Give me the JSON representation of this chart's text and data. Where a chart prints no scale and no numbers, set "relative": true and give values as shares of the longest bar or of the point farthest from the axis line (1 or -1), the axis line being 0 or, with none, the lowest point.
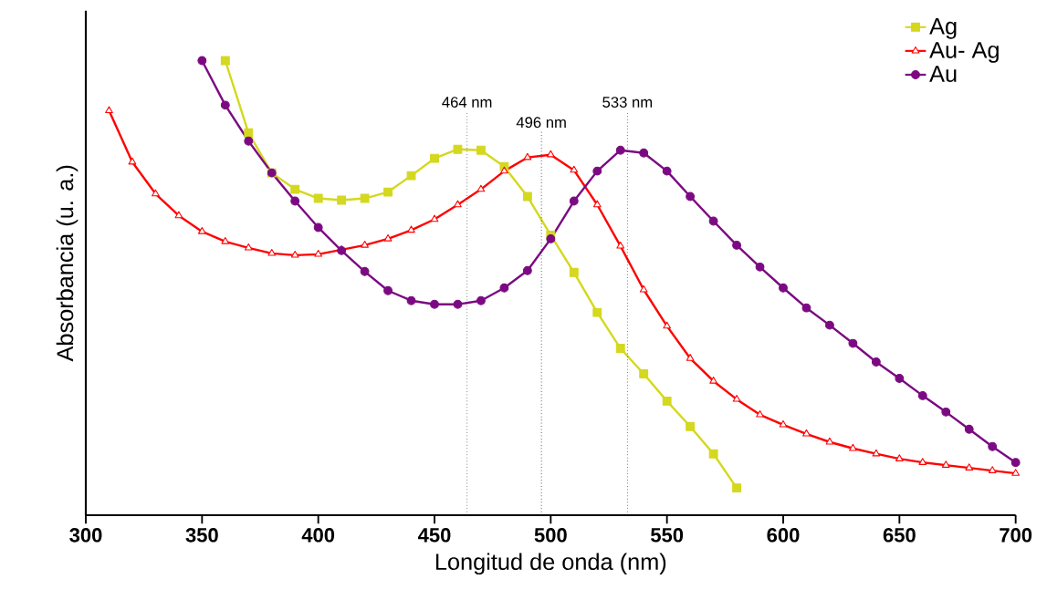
{
  "chart_data": {
    "type": "line",
    "relative": true,
    "xlabel": "Longitud de onda (nm)",
    "ylabel": "Absorbancia (u. a.)",
    "xlim": [
      300,
      700
    ],
    "xticks": [
      300,
      350,
      400,
      450,
      500,
      550,
      600,
      650,
      700
    ],
    "legend": "top right",
    "line_style": "solid",
    "series": [
      {
        "name": "Ag",
        "color": "#d4d81e",
        "marker": "square",
        "x": [
          360,
          370,
          380,
          390,
          400,
          410,
          420,
          430,
          440,
          450,
          460,
          470,
          480,
          490,
          500,
          510,
          520,
          530,
          540,
          550,
          560,
          570,
          580
        ],
        "values": [
          1.0,
          0.841,
          0.753,
          0.717,
          0.697,
          0.693,
          0.697,
          0.711,
          0.747,
          0.785,
          0.805,
          0.803,
          0.767,
          0.701,
          0.616,
          0.534,
          0.446,
          0.367,
          0.311,
          0.251,
          0.195,
          0.135,
          0.06
        ]
      },
      {
        "name": "Au- Ag",
        "color": "#ff0000",
        "marker": "triangle",
        "x": [
          310,
          320,
          330,
          340,
          350,
          360,
          370,
          380,
          390,
          400,
          410,
          420,
          430,
          440,
          450,
          460,
          470,
          480,
          490,
          500,
          510,
          520,
          530,
          540,
          550,
          560,
          570,
          580,
          590,
          600,
          610,
          620,
          630,
          640,
          650,
          660,
          670,
          680,
          690,
          700
        ],
        "values": [
          0.89,
          0.777,
          0.707,
          0.659,
          0.624,
          0.602,
          0.588,
          0.576,
          0.572,
          0.574,
          0.584,
          0.594,
          0.608,
          0.627,
          0.651,
          0.683,
          0.717,
          0.757,
          0.787,
          0.793,
          0.759,
          0.683,
          0.592,
          0.496,
          0.416,
          0.345,
          0.295,
          0.255,
          0.221,
          0.199,
          0.179,
          0.161,
          0.147,
          0.135,
          0.124,
          0.116,
          0.11,
          0.104,
          0.098,
          0.092
        ]
      },
      {
        "name": "Au",
        "color": "#7b0a82",
        "marker": "circle",
        "x": [
          350,
          360,
          370,
          380,
          390,
          400,
          410,
          420,
          430,
          440,
          450,
          460,
          470,
          480,
          490,
          500,
          510,
          520,
          530,
          540,
          550,
          560,
          570,
          580,
          590,
          600,
          610,
          620,
          630,
          640,
          650,
          660,
          670,
          680,
          690,
          700
        ],
        "values": [
          1.0,
          0.902,
          0.823,
          0.753,
          0.691,
          0.633,
          0.582,
          0.536,
          0.494,
          0.472,
          0.464,
          0.464,
          0.472,
          0.5,
          0.538,
          0.608,
          0.691,
          0.757,
          0.803,
          0.797,
          0.757,
          0.701,
          0.647,
          0.594,
          0.546,
          0.5,
          0.456,
          0.418,
          0.378,
          0.337,
          0.301,
          0.263,
          0.227,
          0.189,
          0.151,
          0.116
        ]
      }
    ],
    "ref_lines": [
      {
        "axis": "x",
        "value": 464,
        "label": "464 nm",
        "color": "#000000",
        "line_style": "dotted"
      },
      {
        "axis": "x",
        "value": 496,
        "label": "496 nm",
        "color": "#000000",
        "line_style": "dotted"
      },
      {
        "axis": "x",
        "value": 533,
        "label": "533 nm",
        "color": "#000000",
        "line_style": "dotted"
      }
    ]
  }
}
